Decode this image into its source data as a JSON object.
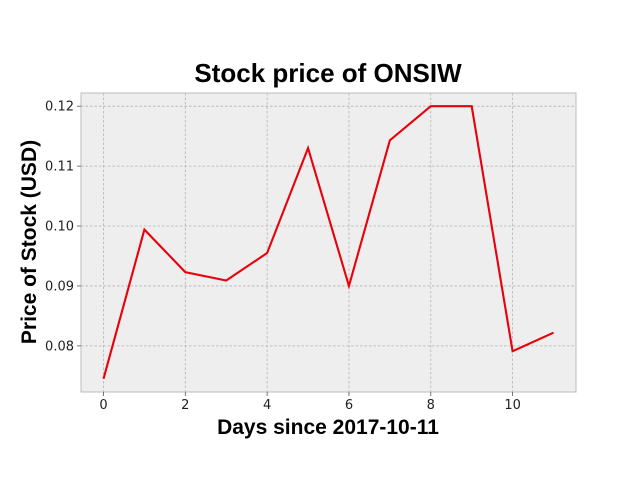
{
  "chart_data": {
    "type": "line",
    "title": "Stock price of ONSIW",
    "xlabel": "Days since 2017-10-11",
    "ylabel": "Price of Stock (USD)",
    "x": [
      0,
      1,
      2,
      3,
      4,
      5,
      6,
      7,
      8,
      9,
      10,
      11
    ],
    "series": [
      {
        "values": [
          0.0745,
          0.0994,
          0.0923,
          0.0909,
          0.0955,
          0.113,
          0.09,
          0.1143,
          0.12,
          0.12,
          0.0791,
          0.0822
        ],
        "color": "#e8000b"
      }
    ],
    "xlim": [
      -0.55,
      11.55
    ],
    "ylim": [
      0.0723,
      0.1222
    ],
    "xticks": [
      0,
      2,
      4,
      6,
      8,
      10
    ],
    "yticks": [
      0.08,
      0.09,
      0.1,
      0.11,
      0.12
    ],
    "ytick_labels": [
      "0.08",
      "0.09",
      "0.10",
      "0.11",
      "0.12"
    ],
    "grid": true,
    "legend": "none",
    "style": {
      "plot_background": "#eeeeee",
      "grid_color": "#b2b2b2",
      "spine_color": "#bcbcbc"
    }
  }
}
